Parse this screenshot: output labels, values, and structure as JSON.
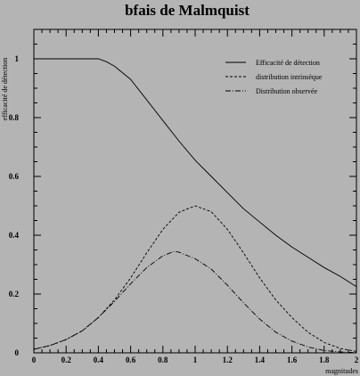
{
  "chart_data": {
    "type": "line",
    "title": "bfais de Malmquist",
    "xlabel": "magnitudes",
    "ylabel": "efficacité de détection",
    "xlim": [
      0,
      2
    ],
    "ylim": [
      0,
      1.1
    ],
    "x_ticks": [
      0,
      0.2,
      0.4,
      0.6,
      0.8,
      1,
      1.2,
      1.4,
      1.6,
      1.8,
      2
    ],
    "x_tick_labels": [
      "0",
      "0.2",
      "0.4",
      "0.6",
      "0.8",
      "1",
      "1.2",
      "1.4",
      "1.6",
      "1.8",
      "2"
    ],
    "y_ticks": [
      0,
      0.2,
      0.4,
      0.6,
      0.8,
      1
    ],
    "y_tick_labels": [
      "0",
      "0.2",
      "0.4",
      "0.6",
      "0.8",
      "1"
    ],
    "grid": false,
    "legend_position": "top-right",
    "series": [
      {
        "name": "Efficacité de détection",
        "style": "solid",
        "x": [
          0,
          0.1,
          0.2,
          0.3,
          0.4,
          0.45,
          0.5,
          0.6,
          0.7,
          0.8,
          0.9,
          1.0,
          1.1,
          1.2,
          1.3,
          1.4,
          1.5,
          1.6,
          1.7,
          1.8,
          1.9,
          2.0
        ],
        "y": [
          1.0,
          1.0,
          1.0,
          1.0,
          1.0,
          0.99,
          0.975,
          0.93,
          0.86,
          0.79,
          0.72,
          0.655,
          0.6,
          0.545,
          0.49,
          0.445,
          0.4,
          0.36,
          0.325,
          0.29,
          0.26,
          0.225
        ]
      },
      {
        "name": "distribution intrinsèque",
        "style": "dashed",
        "x": [
          0,
          0.1,
          0.2,
          0.3,
          0.4,
          0.5,
          0.6,
          0.7,
          0.8,
          0.9,
          1.0,
          1.1,
          1.2,
          1.3,
          1.4,
          1.5,
          1.6,
          1.7,
          1.8,
          1.9,
          2.0
        ],
        "y": [
          0.012,
          0.025,
          0.045,
          0.075,
          0.12,
          0.18,
          0.255,
          0.34,
          0.42,
          0.478,
          0.5,
          0.48,
          0.42,
          0.34,
          0.255,
          0.18,
          0.12,
          0.07,
          0.035,
          0.015,
          0.005
        ]
      },
      {
        "name": "Distribution observée",
        "style": "dashdot",
        "x": [
          0,
          0.1,
          0.2,
          0.3,
          0.4,
          0.5,
          0.6,
          0.7,
          0.8,
          0.87,
          0.9,
          1.0,
          1.1,
          1.2,
          1.3,
          1.4,
          1.5,
          1.6,
          1.7,
          1.8,
          1.9,
          2.0
        ],
        "y": [
          0.012,
          0.025,
          0.045,
          0.075,
          0.12,
          0.175,
          0.235,
          0.29,
          0.33,
          0.345,
          0.342,
          0.32,
          0.285,
          0.23,
          0.17,
          0.115,
          0.07,
          0.04,
          0.02,
          0.008,
          0.003,
          0.001
        ]
      }
    ]
  }
}
